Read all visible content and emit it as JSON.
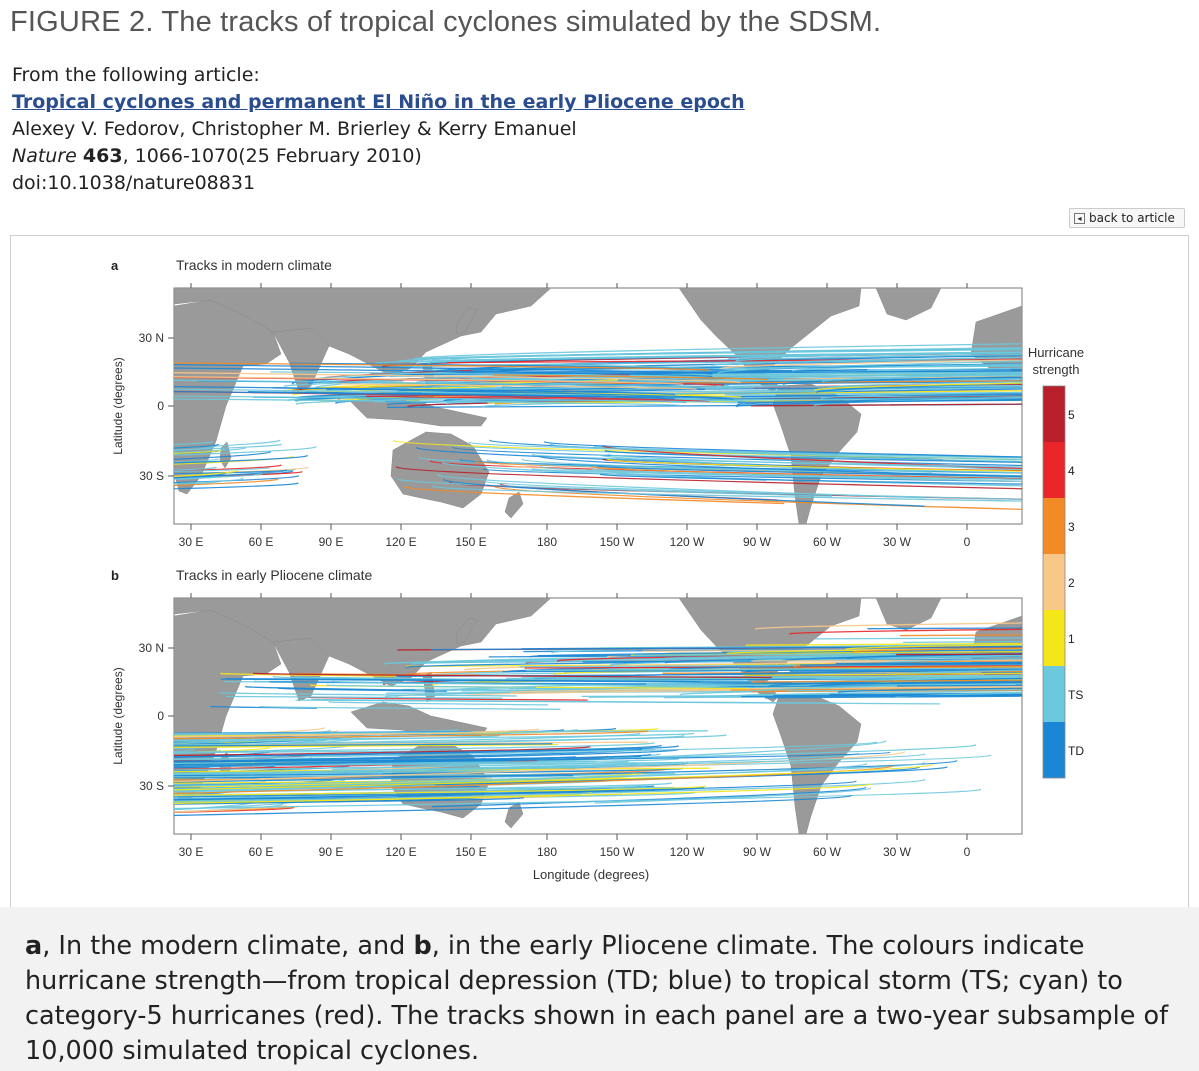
{
  "figure_title": "FIGURE 2. The tracks of tropical cyclones simulated by the SDSM.",
  "article": {
    "from_label": "From the following article:",
    "title": "Tropical cyclones and permanent El Niño in the early Pliocene epoch",
    "authors": "Alexey V. Fedorov, Christopher M. Brierley & Kerry Emanuel",
    "journal": "Nature",
    "volume": "463",
    "pages_date": ", 1066-1070(25 February 2010)",
    "doi": "doi:10.1038/nature08831"
  },
  "back_button": "back to article",
  "figure": {
    "panel_a": {
      "letter": "a",
      "title": "Tracks in modern climate"
    },
    "panel_b": {
      "letter": "b",
      "title": "Tracks in early Pliocene climate"
    },
    "y_axis_label": "Latitude (degrees)",
    "x_axis_label": "Longitude (degrees)",
    "lat_ticks": [
      "30 N",
      "0",
      "30 S"
    ],
    "lon_ticks": [
      "30 E",
      "60 E",
      "90 E",
      "120 E",
      "150 E",
      "180",
      "150 W",
      "120 W",
      "90 W",
      "60 W",
      "30 W",
      "0"
    ],
    "legend": {
      "title_line1": "Hurricane",
      "title_line2": "strength",
      "levels": [
        {
          "label": "5",
          "color": "#b81f2a"
        },
        {
          "label": "4",
          "color": "#e8262a"
        },
        {
          "label": "3",
          "color": "#f28a26"
        },
        {
          "label": "2",
          "color": "#f8c888"
        },
        {
          "label": "1",
          "color": "#f5e619"
        },
        {
          "label": "TS",
          "color": "#6cc8dd"
        },
        {
          "label": "TD",
          "color": "#1b87d4"
        }
      ]
    }
  },
  "caption": {
    "a_label": "a",
    "a_text": ", In the modern climate, and ",
    "b_label": "b",
    "b_text": ", in the early Pliocene climate. The colours indicate hurricane strength—from tropical depression (TD; blue) to tropical storm (TS; cyan) to category-5 hurricanes (red). The tracks shown in each panel are a two-year subsample of 10,000 simulated tropical cyclones."
  }
}
